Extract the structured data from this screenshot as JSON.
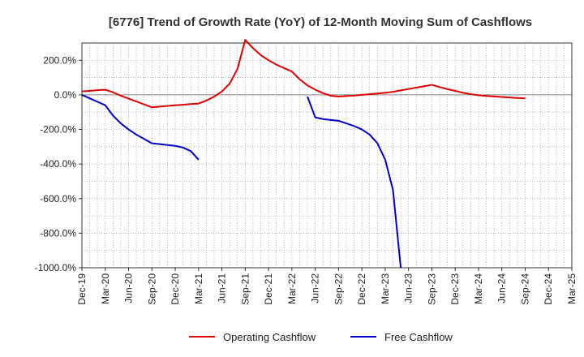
{
  "chart_data": {
    "type": "line",
    "title": "[6776]  Trend of Growth Rate (YoY) of 12-Month Moving Sum of Cashflows",
    "xlabel": "",
    "ylabel": "",
    "ylim": [
      -1000,
      300
    ],
    "y_ticks": [
      200,
      0,
      -200,
      -400,
      -600,
      -800,
      -1000
    ],
    "y_tick_labels": [
      "200.0%",
      "0.0%",
      "-200.0%",
      "-400.0%",
      "-600.0%",
      "-800.0%",
      "-1000.0%"
    ],
    "x_tick_labels": [
      "Dec-19",
      "Mar-20",
      "Jun-20",
      "Sep-20",
      "Dec-20",
      "Mar-21",
      "Jun-21",
      "Sep-21",
      "Dec-21",
      "Mar-22",
      "Jun-22",
      "Sep-22",
      "Dec-22",
      "Mar-23",
      "Jun-23",
      "Sep-23",
      "Dec-23",
      "Mar-24",
      "Jun-24",
      "Sep-24",
      "Dec-24",
      "Mar-25"
    ],
    "x_range": [
      "Dec-19",
      "Mar-25"
    ],
    "grid": true,
    "legend_position": "bottom",
    "series": [
      {
        "name": "Operating Cashflow",
        "color": "#e00000",
        "points": [
          [
            "Dec-19",
            20
          ],
          [
            "Jan-20",
            23
          ],
          [
            "Feb-20",
            27
          ],
          [
            "Mar-20",
            30
          ],
          [
            "Apr-20",
            15
          ],
          [
            "May-20",
            -5
          ],
          [
            "Jun-20",
            -22
          ],
          [
            "Jul-20",
            -38
          ],
          [
            "Aug-20",
            -55
          ],
          [
            "Sep-20",
            -72
          ],
          [
            "Oct-20",
            -68
          ],
          [
            "Nov-20",
            -64
          ],
          [
            "Dec-20",
            -60
          ],
          [
            "Jan-21",
            -57
          ],
          [
            "Feb-21",
            -53
          ],
          [
            "Mar-21",
            -50
          ],
          [
            "Apr-21",
            -33
          ],
          [
            "May-21",
            -10
          ],
          [
            "Jun-21",
            20
          ],
          [
            "Jul-21",
            65
          ],
          [
            "Aug-21",
            150
          ],
          [
            "Sep-21",
            318
          ],
          [
            "Oct-21",
            270
          ],
          [
            "Nov-21",
            230
          ],
          [
            "Dec-21",
            200
          ],
          [
            "Jan-22",
            175
          ],
          [
            "Feb-22",
            155
          ],
          [
            "Mar-22",
            135
          ],
          [
            "Apr-22",
            90
          ],
          [
            "May-22",
            55
          ],
          [
            "Jun-22",
            30
          ],
          [
            "Jul-22",
            10
          ],
          [
            "Aug-22",
            -5
          ],
          [
            "Sep-22",
            -10
          ],
          [
            "Oct-22",
            -7
          ],
          [
            "Nov-22",
            -4
          ],
          [
            "Dec-22",
            0
          ],
          [
            "Jan-23",
            4
          ],
          [
            "Feb-23",
            8
          ],
          [
            "Mar-23",
            12
          ],
          [
            "Apr-23",
            18
          ],
          [
            "May-23",
            26
          ],
          [
            "Jun-23",
            34
          ],
          [
            "Jul-23",
            42
          ],
          [
            "Aug-23",
            50
          ],
          [
            "Sep-23",
            58
          ],
          [
            "Oct-23",
            45
          ],
          [
            "Nov-23",
            33
          ],
          [
            "Dec-23",
            23
          ],
          [
            "Jan-24",
            12
          ],
          [
            "Feb-24",
            4
          ],
          [
            "Mar-24",
            -2
          ],
          [
            "Apr-24",
            -6
          ],
          [
            "May-24",
            -9
          ],
          [
            "Jun-24",
            -12
          ],
          [
            "Jul-24",
            -15
          ],
          [
            "Aug-24",
            -18
          ],
          [
            "Sep-24",
            -20
          ]
        ]
      },
      {
        "name": "Free Cashflow",
        "color": "#0000cc",
        "segments": [
          [
            [
              "Dec-19",
              0
            ],
            [
              "Jan-20",
              -20
            ],
            [
              "Feb-20",
              -40
            ],
            [
              "Mar-20",
              -60
            ],
            [
              "Apr-20",
              -120
            ],
            [
              "May-20",
              -165
            ],
            [
              "Jun-20",
              -200
            ],
            [
              "Jul-20",
              -230
            ],
            [
              "Aug-20",
              -255
            ],
            [
              "Sep-20",
              -280
            ],
            [
              "Oct-20",
              -285
            ],
            [
              "Nov-20",
              -290
            ],
            [
              "Dec-20",
              -295
            ],
            [
              "Jan-21",
              -305
            ],
            [
              "Feb-21",
              -325
            ],
            [
              "Mar-21",
              -375
            ]
          ],
          [
            [
              "May-22",
              -10
            ],
            [
              "Jun-22",
              -130
            ],
            [
              "Jul-22",
              -140
            ],
            [
              "Aug-22",
              -145
            ],
            [
              "Sep-22",
              -150
            ],
            [
              "Oct-22",
              -165
            ],
            [
              "Nov-22",
              -180
            ],
            [
              "Dec-22",
              -200
            ],
            [
              "Jan-23",
              -230
            ],
            [
              "Feb-23",
              -280
            ],
            [
              "Mar-23",
              -375
            ],
            [
              "Apr-23",
              -550
            ],
            [
              "May-23",
              -1000
            ]
          ]
        ]
      }
    ]
  }
}
